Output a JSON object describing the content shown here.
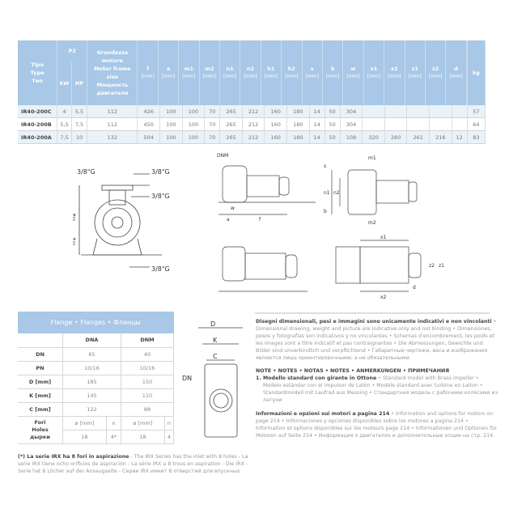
{
  "spec_table": {
    "headers": {
      "type": [
        "Tipo",
        "Type",
        "Тип"
      ],
      "p2": "P2",
      "kw": "kW",
      "hp": "HP",
      "motor": [
        "Grandezza",
        "motore",
        "Motor frame",
        "size",
        "Мощность",
        "двигателя"
      ],
      "dims": [
        "f",
        "a",
        "m1",
        "m2",
        "n1",
        "n2",
        "h1",
        "h2",
        "s",
        "b",
        "w",
        "x1",
        "x2",
        "z1",
        "z2",
        "d"
      ],
      "unit": "[mm]",
      "kg": "kg"
    },
    "rows": [
      [
        "IR40-200C",
        "4",
        "5,5",
        "112",
        "426",
        "100",
        "100",
        "70",
        "265",
        "212",
        "160",
        "180",
        "14",
        "50",
        "304",
        "",
        "",
        "",
        "",
        "",
        "57"
      ],
      [
        "IR40-200B",
        "5,5",
        "7,5",
        "112",
        "450",
        "100",
        "100",
        "70",
        "265",
        "212",
        "160",
        "180",
        "14",
        "50",
        "304",
        "",
        "",
        "",
        "",
        "",
        "64"
      ],
      [
        "IR40-200A",
        "7,5",
        "10",
        "132",
        "504",
        "100",
        "100",
        "70",
        "265",
        "212",
        "160",
        "180",
        "14",
        "50",
        "108",
        "320",
        "280",
        "261",
        "216",
        "12",
        "83"
      ]
    ]
  },
  "drawings": {
    "pump_front": {
      "labels": [
        "3/8\"G",
        "3/8\"G",
        "3/8\"G",
        "3/8\"G",
        "h2",
        "h1"
      ]
    },
    "side_labels": [
      "DNM",
      "DNA",
      "w",
      "a",
      "f",
      "m1",
      "s",
      "n1",
      "n2",
      "b",
      "m2",
      "x1",
      "z2",
      "z1",
      "x2",
      "d"
    ],
    "flange": {
      "labels": [
        "D",
        "K",
        "C",
        "DN"
      ]
    }
  },
  "flange_table": {
    "title": "Flange • Flanges • Фланцы",
    "columns": [
      "DNA",
      "DNM"
    ],
    "rows": [
      {
        "label": "DN",
        "values": [
          "65",
          "40"
        ]
      },
      {
        "label": "PN",
        "values": [
          "10/16",
          "10/16"
        ]
      },
      {
        "label": "D [mm]",
        "values": [
          "185",
          "150"
        ]
      },
      {
        "label": "K [mm]",
        "values": [
          "145",
          "110"
        ]
      },
      {
        "label": "C [mm]",
        "values": [
          "122",
          "88"
        ]
      }
    ],
    "holes_label": [
      "Fori",
      "Holes",
      "дырки"
    ],
    "holes_sub": [
      "ø [mm]",
      "n",
      "ø [mm]",
      "n"
    ],
    "holes_values": [
      "18",
      "4*",
      "18",
      "4"
    ]
  },
  "footnote": {
    "bold": "(*) La serie IRX ha 8 fori in aspirazione",
    "rest": " - The IRX Series has the inlet with 8 holes -  La serie IRX tiene ocho orificios de aspiración - La série IRX a 8 trous en aspiration - Die IRX -Serie hat 8 Löcher auf der Ansaugseite - Серии IRX имеет 8 отверстий для впускных"
  },
  "notes": {
    "disclaimer_bold": "Disegni dimensionali, pesi e immagini sono unicamente indicativi e non vincolanti",
    "disclaimer_rest": " • Dimensional drawing, weight and picture are indicative only and not binding • Dimensiones, pesos y fotografías son indicativos y no vinculantes • Schemas d'encombrement, les poids et les images sont a titre indicatif et pas contraignantes • Die Abmessungen, Gewichte und Bilder sind unverbindlich und verpflichtend • Габаритные чертежи, веса и изображения являются лишь ориентировочными, а не обязательными.",
    "notes_heading": "NOTE • NOTES • NOTAS • NOTES • ANMERKUNGEN • ПРИМЕЧАНИЯ",
    "note1_bold": "1. Modello standard con girante in Ottone",
    "note1_rest": " • Standard model with Brass impeller • Modelo estándar con el impulsor de Latón • Modèle standard avec turbine en Laiton • Standardmodell mit Laufrad aus Messing • Стандартная модель с рабочими колёсами из латуни",
    "motors_bold": "Informazioni e opzioni sui motori a pagina 214",
    "motors_rest": " • Information and options for motors on page 214 • Informaciones y opciones disponibles sobre los motores a pagina 214 • Information et options disponibles sur les moteurs page 214 • Informationen und Optionen für Motoren auf Seite 214 • Информация о двигателях и дополнительные опции на стр. 214."
  },
  "colors": {
    "header_blue": "#a9c7e6",
    "row_alt": "#e8f2f8"
  }
}
